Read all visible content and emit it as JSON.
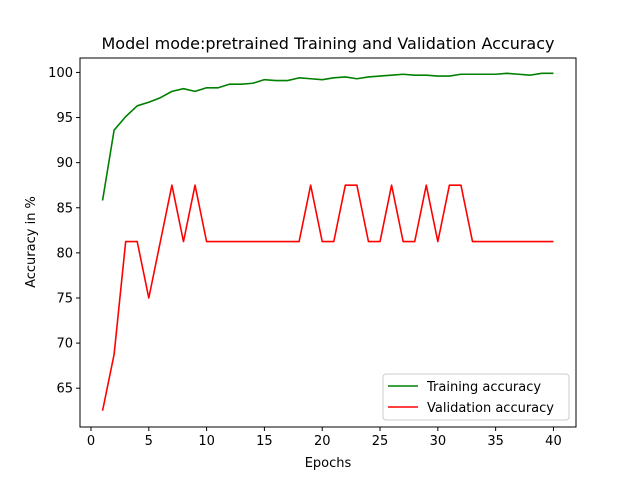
{
  "chart_data": {
    "type": "line",
    "title": "Model mode:pretrained Training and Validation Accuracy",
    "xlabel": "Epochs",
    "ylabel": "Accuracy in %",
    "xlim": [
      -0.95,
      41.95
    ],
    "ylim": [
      60.7,
      101.6
    ],
    "xticks": [
      0,
      5,
      10,
      15,
      20,
      25,
      30,
      35,
      40
    ],
    "yticks": [
      65,
      70,
      75,
      80,
      85,
      90,
      95,
      100
    ],
    "grid": false,
    "legend_position": "lower-right",
    "x": [
      1,
      2,
      3,
      4,
      5,
      6,
      7,
      8,
      9,
      10,
      11,
      12,
      13,
      14,
      15,
      16,
      17,
      18,
      19,
      20,
      21,
      22,
      23,
      24,
      25,
      26,
      27,
      28,
      29,
      30,
      31,
      32,
      33,
      34,
      35,
      36,
      37,
      38,
      39,
      40
    ],
    "series": [
      {
        "name": "Training accuracy",
        "color": "#008000",
        "values": [
          85.8,
          93.6,
          95.1,
          96.3,
          96.7,
          97.2,
          97.9,
          98.2,
          97.9,
          98.3,
          98.3,
          98.7,
          98.7,
          98.8,
          99.2,
          99.1,
          99.1,
          99.4,
          99.3,
          99.2,
          99.4,
          99.5,
          99.3,
          99.5,
          99.6,
          99.7,
          99.8,
          99.7,
          99.7,
          99.6,
          99.6,
          99.8,
          99.8,
          99.8,
          99.8,
          99.9,
          99.8,
          99.7,
          99.9,
          99.9
        ]
      },
      {
        "name": "Validation accuracy",
        "color": "#ff0000",
        "values": [
          62.5,
          68.75,
          81.25,
          81.25,
          75.0,
          81.25,
          87.5,
          81.25,
          87.5,
          81.25,
          81.25,
          81.25,
          81.25,
          81.25,
          81.25,
          81.25,
          81.25,
          81.25,
          87.5,
          81.25,
          81.25,
          87.5,
          87.5,
          81.25,
          81.25,
          87.5,
          81.25,
          81.25,
          87.5,
          81.25,
          87.5,
          87.5,
          81.25,
          81.25,
          81.25,
          81.25,
          81.25,
          81.25,
          81.25,
          81.25
        ]
      }
    ]
  }
}
